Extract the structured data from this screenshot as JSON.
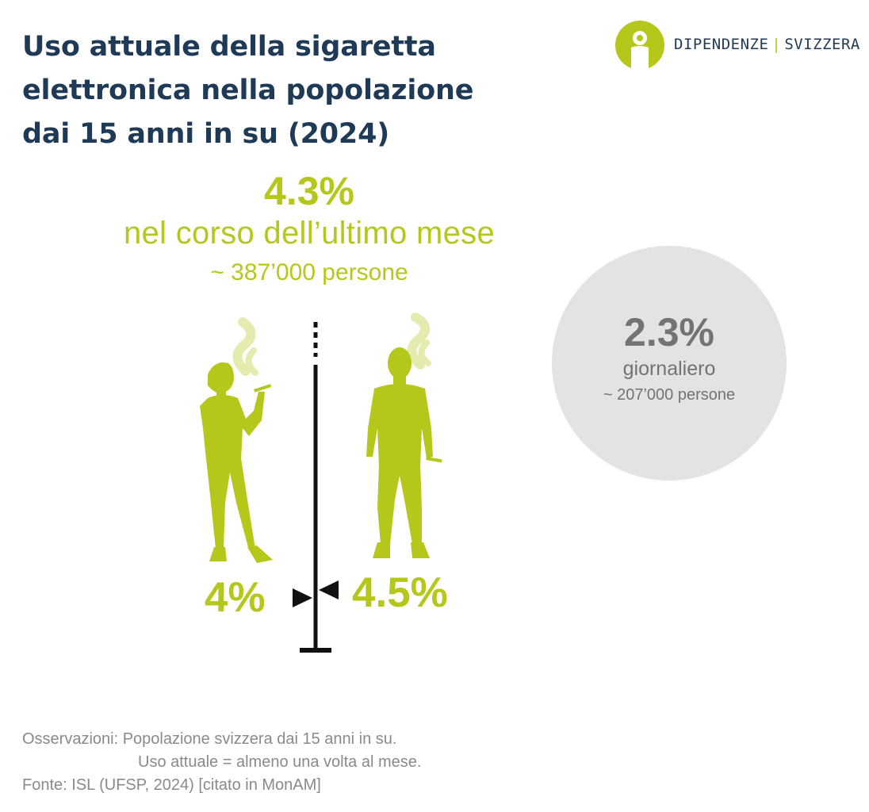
{
  "title": {
    "line1": "Uso attuale della sigaretta",
    "line2": "elettronica nella popolazione",
    "line3": "dai 15 anni in su (2024)"
  },
  "logo": {
    "brand_left": "DIPENDENZE",
    "brand_right": "SVIZZERA"
  },
  "colors": {
    "title": "#1f3a56",
    "accent": "#b6c71b",
    "grey_text": "#737373",
    "circle_bg": "#e3e3e3"
  },
  "chart_data": {
    "type": "bar",
    "monthly": {
      "value": "4.3%",
      "label": "nel corso dell’ultimo mese",
      "people": "~ 387’000 persone"
    },
    "daily": {
      "value": "2.3%",
      "label": "giornaliero",
      "people": "~ 207’000 persone"
    },
    "categories": [
      "women",
      "men"
    ],
    "values": [
      4.0,
      4.5
    ],
    "value_labels": [
      "4%",
      "4.5%"
    ]
  },
  "notes": {
    "line1": "Osservazioni: Popolazione svizzera dai 15 anni in su.",
    "line2": "Uso attuale = almeno una volta al mese.",
    "source": "Fonte: ISL (UFSP, 2024) [citato in MonAM]"
  }
}
